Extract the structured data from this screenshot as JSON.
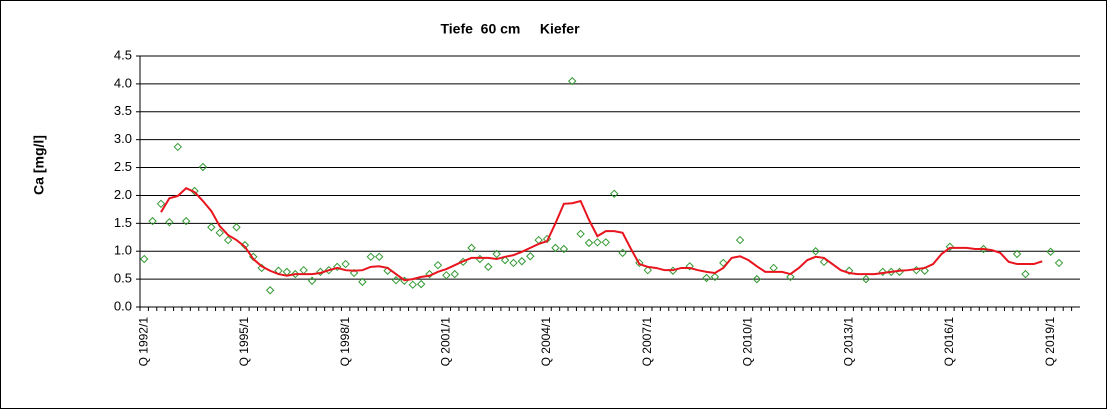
{
  "chart_data": {
    "type": "line",
    "title": "Tiefe  60 cm     Kiefer",
    "y_label": "Ca [mg/l]",
    "categories": [
      "Q 1992/1",
      null,
      null,
      null,
      null,
      null,
      null,
      null,
      null,
      null,
      null,
      null,
      "Q 1995/1",
      null,
      null,
      null,
      null,
      null,
      null,
      null,
      null,
      null,
      null,
      null,
      "Q 1998/1",
      null,
      null,
      null,
      null,
      null,
      null,
      null,
      null,
      null,
      null,
      null,
      "Q 2001/1",
      null,
      null,
      null,
      null,
      null,
      null,
      null,
      null,
      null,
      null,
      null,
      "Q 2004/1",
      null,
      null,
      null,
      null,
      null,
      null,
      null,
      null,
      null,
      null,
      null,
      "Q 2007/1",
      null,
      null,
      null,
      null,
      null,
      null,
      null,
      null,
      null,
      null,
      null,
      "Q 2010/1",
      null,
      null,
      null,
      null,
      null,
      null,
      null,
      null,
      null,
      null,
      null,
      "Q 2013/1",
      null,
      null,
      null,
      null,
      null,
      null,
      null,
      null,
      null,
      null,
      null,
      "Q 2016/1",
      null,
      null,
      null,
      null,
      null,
      null,
      null,
      null,
      null,
      null,
      null,
      "Q 2019/1",
      null,
      null,
      null
    ],
    "series": [
      {
        "mode": "markers",
        "color": "#339933",
        "values": [
          0.86,
          1.54,
          1.85,
          1.52,
          2.87,
          1.54,
          2.08,
          2.51,
          1.43,
          1.33,
          1.2,
          1.43,
          1.11,
          0.9,
          0.7,
          0.3,
          0.65,
          0.63,
          0.59,
          0.66,
          0.47,
          0.63,
          0.66,
          0.72,
          0.77,
          0.61,
          0.45,
          0.9,
          0.9,
          0.65,
          0.48,
          0.47,
          0.4,
          0.41,
          0.59,
          0.75,
          0.57,
          0.59,
          0.81,
          1.06,
          0.86,
          0.72,
          0.95,
          0.84,
          0.79,
          0.82,
          0.91,
          1.2,
          1.22,
          1.06,
          1.04,
          4.05,
          1.31,
          1.15,
          1.16,
          1.16,
          2.03,
          0.97,
          null,
          0.79,
          0.66,
          null,
          null,
          0.65,
          null,
          0.73,
          null,
          0.52,
          0.54,
          0.79,
          null,
          1.2,
          null,
          0.5,
          null,
          0.7,
          null,
          0.54,
          null,
          null,
          1.0,
          0.81,
          null,
          null,
          0.65,
          null,
          0.5,
          null,
          0.63,
          0.63,
          0.63,
          null,
          0.66,
          0.65,
          null,
          null,
          1.08,
          null,
          null,
          null,
          1.04,
          null,
          null,
          null,
          0.95,
          0.59,
          null,
          null,
          0.99,
          0.79,
          null,
          null
        ]
      },
      {
        "mode": "line",
        "color": "#e8141e",
        "values": [
          null,
          null,
          1.7,
          1.95,
          1.99,
          2.13,
          2.06,
          1.9,
          1.72,
          1.45,
          1.29,
          1.2,
          1.08,
          0.86,
          0.73,
          0.65,
          0.59,
          0.56,
          0.59,
          0.59,
          0.59,
          0.61,
          0.66,
          0.7,
          0.66,
          0.65,
          0.66,
          0.72,
          0.73,
          0.7,
          0.59,
          0.48,
          0.5,
          0.54,
          0.56,
          0.63,
          0.68,
          0.75,
          0.82,
          0.88,
          0.88,
          0.88,
          0.86,
          0.9,
          0.93,
          0.99,
          1.06,
          1.13,
          1.18,
          1.5,
          1.85,
          1.86,
          1.9,
          1.56,
          1.27,
          1.36,
          1.36,
          1.33,
          1.04,
          0.77,
          0.72,
          0.7,
          0.66,
          0.66,
          0.7,
          0.7,
          0.66,
          0.63,
          0.61,
          0.7,
          0.88,
          0.91,
          0.84,
          0.73,
          0.63,
          0.63,
          0.63,
          0.59,
          0.7,
          0.84,
          0.9,
          0.88,
          0.77,
          0.66,
          0.61,
          0.59,
          0.59,
          0.59,
          0.61,
          0.63,
          0.65,
          0.66,
          0.68,
          0.7,
          0.77,
          0.95,
          1.06,
          1.06,
          1.06,
          1.04,
          1.04,
          1.02,
          0.97,
          0.81,
          0.77,
          0.77,
          0.77,
          0.82,
          null,
          null,
          null,
          null
        ]
      }
    ],
    "ylim": [
      0,
      4.5
    ],
    "yticks": [
      {
        "value": 0,
        "label": "0.0"
      },
      0.5,
      {
        "value": 1,
        "label": "1.0"
      },
      1.5,
      {
        "value": 2,
        "label": "2.0"
      },
      2.5,
      {
        "value": 3,
        "label": "3.0"
      },
      3.5,
      {
        "value": 4,
        "label": "4.0"
      },
      4.5
    ],
    "grid": true
  }
}
